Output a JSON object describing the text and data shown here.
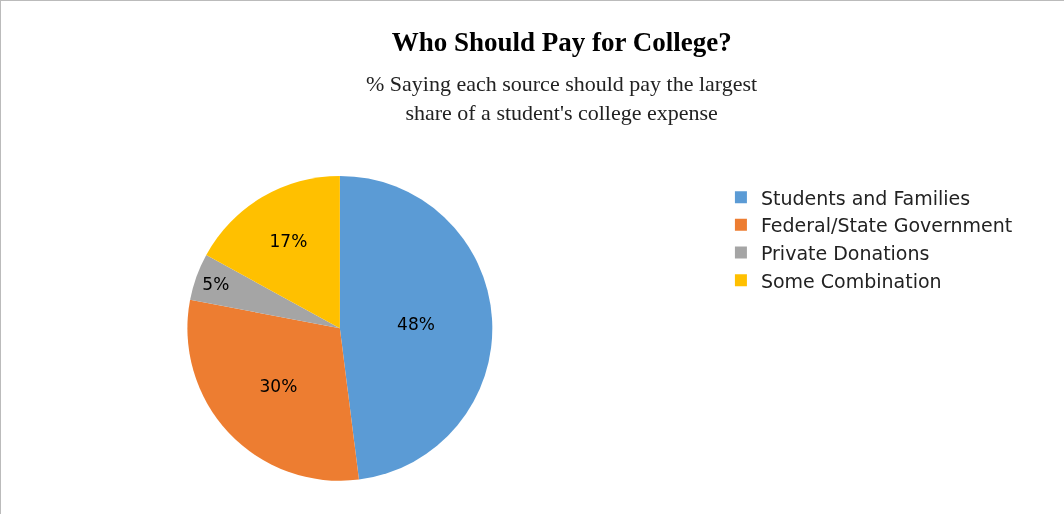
{
  "chart_data": {
    "type": "pie",
    "title": "Who Should Pay for College?",
    "subtitle": "% Saying each source should pay the largest share of a student's college expense",
    "categories": [
      "Students and Families",
      "Federal/State Government",
      "Private Donations",
      "Some Combination"
    ],
    "values": [
      48,
      30,
      5,
      17
    ],
    "colors": [
      "#5b9bd5",
      "#ed7d31",
      "#a5a5a5",
      "#ffc000"
    ],
    "value_labels": [
      "48%",
      "30%",
      "5%",
      "17%"
    ],
    "legend": "right"
  }
}
